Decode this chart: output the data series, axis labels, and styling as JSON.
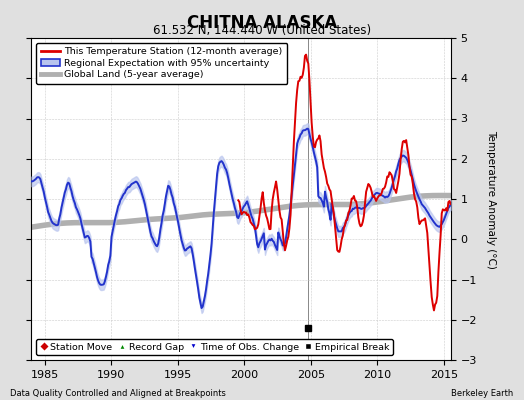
{
  "title": "CHITNA ALASKA",
  "subtitle": "61.532 N, 144.440 W (United States)",
  "xlabel_bottom": "Data Quality Controlled and Aligned at Breakpoints",
  "xlabel_right": "Berkeley Earth",
  "ylabel": "Temperature Anomaly (°C)",
  "xlim": [
    1984.0,
    2015.5
  ],
  "ylim": [
    -3,
    5
  ],
  "yticks": [
    -3,
    -2,
    -1,
    0,
    1,
    2,
    3,
    4,
    5
  ],
  "xticks": [
    1985,
    1990,
    1995,
    2000,
    2005,
    2010,
    2015
  ],
  "bg_color": "#e0e0e0",
  "plot_bg_color": "#ffffff",
  "station_color": "#dd0000",
  "regional_color": "#2233cc",
  "regional_fill_color": "#b8c4ee",
  "global_color": "#b0b0b0",
  "legend_labels": [
    "This Temperature Station (12-month average)",
    "Regional Expectation with 95% uncertainty",
    "Global Land (5-year average)"
  ],
  "marker_labels": [
    "Station Move",
    "Record Gap",
    "Time of Obs. Change",
    "Empirical Break"
  ],
  "marker_colors": [
    "#cc0000",
    "#008800",
    "#0000cc",
    "#000000"
  ],
  "empirical_break_year": 2004.75,
  "vertical_line_year": 2004.75,
  "station_start_year": 1999.5,
  "seed": 42
}
